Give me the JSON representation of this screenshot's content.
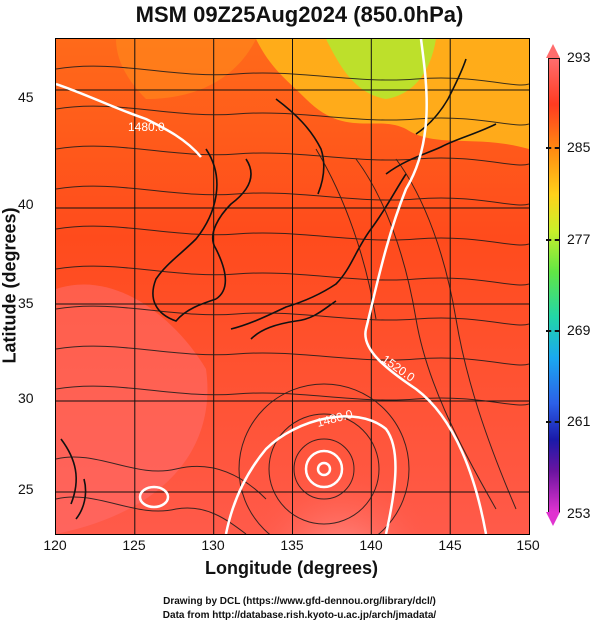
{
  "title": "MSM 09Z25Aug2024 (850.0hPa)",
  "axes": {
    "xlabel": "Longitude (degrees)",
    "ylabel": "Latitude  (degrees)",
    "xticks": [
      "120",
      "125",
      "130",
      "135",
      "140",
      "145",
      "150"
    ],
    "yticks": [
      "45",
      "40",
      "35",
      "30",
      "25"
    ],
    "xlim": [
      120,
      150
    ],
    "ylim": [
      22.4,
      47.6
    ]
  },
  "colorbar": {
    "ticks": [
      "293",
      "285",
      "277",
      "269",
      "261",
      "253"
    ],
    "range": [
      253,
      293
    ],
    "colors": [
      "#e033d0",
      "#6b14a0",
      "#1a1aaa",
      "#2c60e8",
      "#1aa8f0",
      "#22d6a8",
      "#61e645",
      "#c9f02a",
      "#ffd11a",
      "#ff8b11",
      "#ff3b21",
      "#ff6d6d"
    ]
  },
  "contour_labels": [
    "1480.0",
    "1520.0",
    "1480.0"
  ],
  "credits": {
    "line1": "Drawing by DCL (https://www.gfd-dennou.org/library/dcl/)",
    "line2": "Data from http://database.rish.kyoto-u.ac.jp/arch/jmadata/"
  },
  "chart_data": {
    "type": "heatmap",
    "variable": "temperature (K)",
    "level_hPa": 850.0,
    "lon_range": [
      120,
      150
    ],
    "lat_range": [
      22.4,
      47.6
    ],
    "value_range": [
      253,
      293
    ],
    "overlays": [
      "streamlines",
      "geopotential height contours",
      "coastlines"
    ]
  }
}
